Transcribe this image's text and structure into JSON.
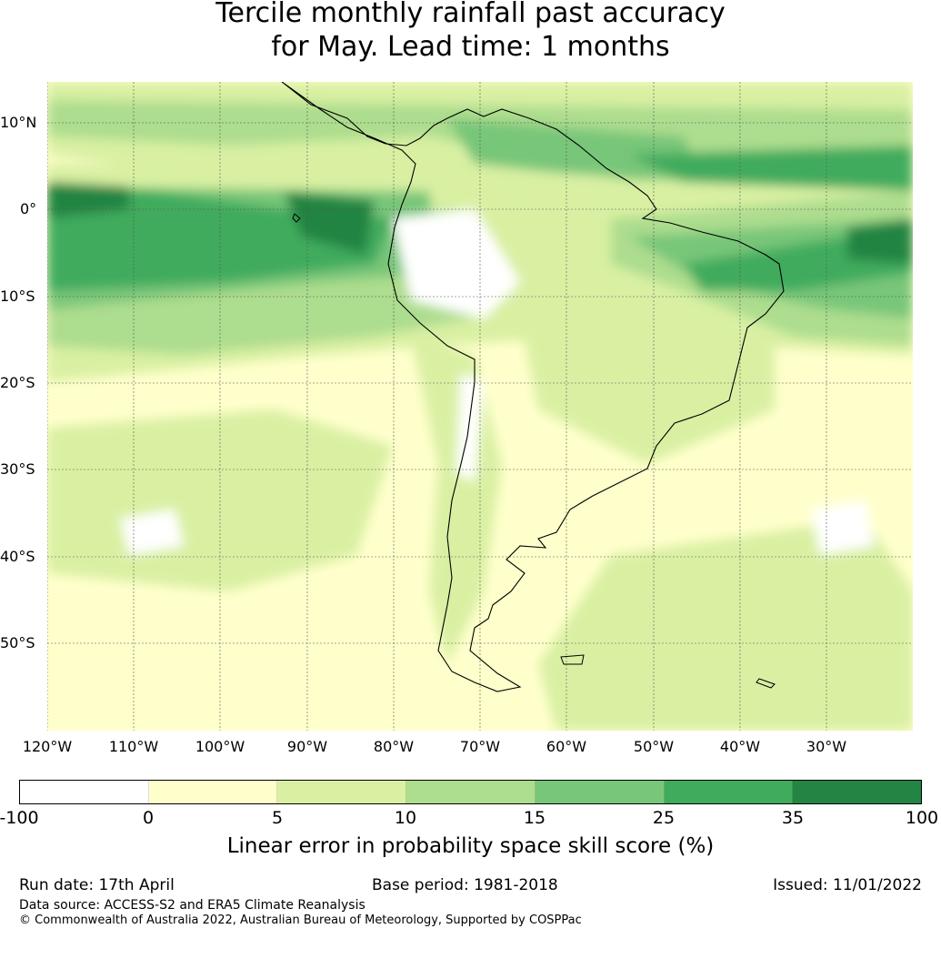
{
  "title": {
    "line1": "Tercile monthly rainfall past accuracy",
    "line2": "for May. Lead time: 1 months"
  },
  "map": {
    "lat_labels": [
      "10°N",
      "0°",
      "10°S",
      "20°S",
      "30°S",
      "40°S",
      "50°S"
    ],
    "lon_labels": [
      "120°W",
      "110°W",
      "100°W",
      "90°W",
      "80°W",
      "70°W",
      "60°W",
      "50°W",
      "40°W",
      "30°W"
    ],
    "colors": {
      "lt_0": "#ffffff",
      "c0_5": "#ffffcc",
      "c5_10": "#d9f0a3",
      "c10_15": "#addd8e",
      "c15_25": "#78c679",
      "c25_35": "#41ab5d",
      "c35_100": "#238443",
      "coast": "#000000",
      "grid": "#555555"
    }
  },
  "colorbar": {
    "ticks": [
      "-100",
      "0",
      "5",
      "10",
      "15",
      "25",
      "35",
      "100"
    ],
    "colors": [
      "#ffffff",
      "#ffffcc",
      "#d9f0a3",
      "#addd8e",
      "#78c679",
      "#41ab5d",
      "#238443"
    ],
    "label": "Linear error in probability space skill score (%)"
  },
  "footer": {
    "run_date": "Run date: 17th April",
    "base_period": "Base period: 1981-2018",
    "issued": "Issued: 11/01/2022",
    "data_source": "Data source: ACCESS-S2 and ERA5 Climate Reanalysis",
    "copyright": "© Commonwealth of Australia 2022, Australian Bureau of Meteorology, Supported by COSPPac"
  }
}
